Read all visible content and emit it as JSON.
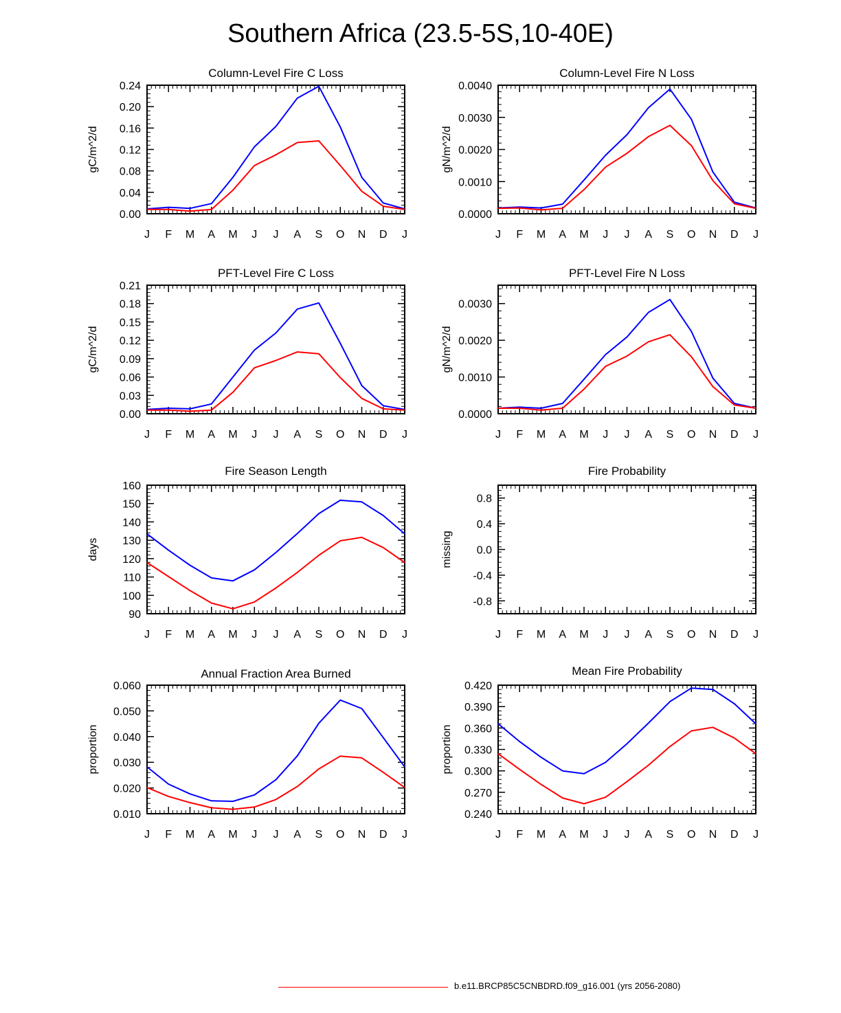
{
  "title": "Southern Africa (23.5-5S,10-40E)",
  "legend": {
    "label": "b.e11.BRCP85C5CNBDRD.f09_g16.001 (yrs 2056-2080)",
    "color": "#ff0000"
  },
  "chart_data": [
    {
      "type": "line",
      "title": "Column-Level Fire C Loss",
      "ylabel": "gC/m^2/d",
      "categories": [
        "J",
        "F",
        "M",
        "A",
        "M",
        "J",
        "J",
        "A",
        "S",
        "O",
        "N",
        "D",
        "J"
      ],
      "ylim": [
        0,
        0.24
      ],
      "yticks": [
        "0.00",
        "0.04",
        "0.08",
        "0.12",
        "0.16",
        "0.20",
        "0.24"
      ],
      "series": [
        {
          "name": "blue",
          "color": "#0000ff",
          "values": [
            0.009,
            0.012,
            0.01,
            0.019,
            0.068,
            0.125,
            0.163,
            0.216,
            0.238,
            0.162,
            0.068,
            0.02,
            0.009
          ]
        },
        {
          "name": "b.e11.BRCP85C5CNBDRD.f09_g16.001 (yrs 2056-2080)",
          "color": "#ff0000",
          "values": [
            0.008,
            0.008,
            0.005,
            0.008,
            0.044,
            0.09,
            0.11,
            0.133,
            0.136,
            0.09,
            0.042,
            0.014,
            0.008
          ]
        }
      ]
    },
    {
      "type": "line",
      "title": "Column-Level Fire N Loss",
      "ylabel": "gN/m^2/d",
      "categories": [
        "J",
        "F",
        "M",
        "A",
        "M",
        "J",
        "J",
        "A",
        "S",
        "O",
        "N",
        "D",
        "J"
      ],
      "ylim": [
        0,
        0.004
      ],
      "yticks": [
        "0.0000",
        "0.0010",
        "0.0020",
        "0.0030",
        "0.0040"
      ],
      "series": [
        {
          "name": "blue",
          "color": "#0000ff",
          "values": [
            0.00018,
            0.00021,
            0.00018,
            0.0003,
            0.00105,
            0.00182,
            0.00246,
            0.0033,
            0.00388,
            0.00294,
            0.0013,
            0.00036,
            0.00018
          ]
        },
        {
          "name": "b.e11.BRCP85C5CNBDRD.f09_g16.001 (yrs 2056-2080)",
          "color": "#ff0000",
          "values": [
            0.00017,
            0.00018,
            0.00012,
            0.00017,
            0.00075,
            0.00145,
            0.00188,
            0.0024,
            0.00275,
            0.00212,
            0.00103,
            0.00031,
            0.00017
          ]
        }
      ]
    },
    {
      "type": "line",
      "title": "PFT-Level Fire C Loss",
      "ylabel": "gC/m^2/d",
      "categories": [
        "J",
        "F",
        "M",
        "A",
        "M",
        "J",
        "J",
        "A",
        "S",
        "O",
        "N",
        "D",
        "J"
      ],
      "ylim": [
        0,
        0.21
      ],
      "yticks": [
        "0.00",
        "0.03",
        "0.06",
        "0.09",
        "0.12",
        "0.15",
        "0.18",
        "0.21"
      ],
      "series": [
        {
          "name": "blue",
          "color": "#0000ff",
          "values": [
            0.007,
            0.009,
            0.008,
            0.016,
            0.06,
            0.104,
            0.132,
            0.171,
            0.181,
            0.115,
            0.046,
            0.013,
            0.007
          ]
        },
        {
          "name": "b.e11.BRCP85C5CNBDRD.f09_g16.001 (yrs 2056-2080)",
          "color": "#ff0000",
          "values": [
            0.006,
            0.006,
            0.004,
            0.006,
            0.035,
            0.075,
            0.087,
            0.101,
            0.098,
            0.059,
            0.025,
            0.008,
            0.006
          ]
        }
      ]
    },
    {
      "type": "line",
      "title": "PFT-Level Fire N Loss",
      "ylabel": "gN/m^2/d",
      "categories": [
        "J",
        "F",
        "M",
        "A",
        "M",
        "J",
        "J",
        "A",
        "S",
        "O",
        "N",
        "D",
        "J"
      ],
      "ylim": [
        0,
        0.0035
      ],
      "yticks": [
        "0.0000",
        "0.0010",
        "0.0020",
        "0.0030"
      ],
      "series": [
        {
          "name": "blue",
          "color": "#0000ff",
          "values": [
            0.00015,
            0.00018,
            0.00015,
            0.00028,
            0.00094,
            0.00161,
            0.00209,
            0.00276,
            0.00311,
            0.00224,
            0.00097,
            0.00028,
            0.00015
          ]
        },
        {
          "name": "b.e11.BRCP85C5CNBDRD.f09_g16.001 (yrs 2056-2080)",
          "color": "#ff0000",
          "values": [
            0.00015,
            0.00015,
            0.0001,
            0.00015,
            0.00067,
            0.00129,
            0.00157,
            0.00196,
            0.00215,
            0.00155,
            0.00074,
            0.00024,
            0.00015
          ]
        }
      ]
    },
    {
      "type": "line",
      "title": "Fire Season Length",
      "ylabel": "days",
      "categories": [
        "J",
        "F",
        "M",
        "A",
        "M",
        "J",
        "J",
        "A",
        "S",
        "O",
        "N",
        "D",
        "J"
      ],
      "ylim": [
        90,
        160
      ],
      "yticks": [
        "90",
        "100",
        "110",
        "120",
        "130",
        "140",
        "150",
        "160"
      ],
      "series": [
        {
          "name": "blue",
          "color": "#0000ff",
          "values": [
            133.5,
            124.6,
            116.4,
            109.5,
            107.9,
            113.9,
            123.3,
            133.7,
            144.5,
            151.8,
            150.9,
            143.5,
            133.5
          ]
        },
        {
          "name": "b.e11.BRCP85C5CNBDRD.f09_g16.001 (yrs 2056-2080)",
          "color": "#ff0000",
          "values": [
            117.9,
            110.2,
            102.6,
            95.8,
            92.7,
            96.4,
            104.0,
            112.5,
            121.8,
            129.7,
            131.6,
            126.0,
            117.9
          ]
        }
      ]
    },
    {
      "type": "line",
      "title": "Fire Probability",
      "ylabel": "missing",
      "categories": [
        "J",
        "F",
        "M",
        "A",
        "M",
        "J",
        "J",
        "A",
        "S",
        "O",
        "N",
        "D",
        "J"
      ],
      "ylim": [
        -1.0,
        1.0
      ],
      "yticks": [
        "-0.8",
        "-0.4",
        "0.0",
        "0.4",
        "0.8"
      ],
      "series": []
    },
    {
      "type": "line",
      "title": "Annual Fraction Area Burned",
      "ylabel": "proportion",
      "categories": [
        "J",
        "F",
        "M",
        "A",
        "M",
        "J",
        "J",
        "A",
        "S",
        "O",
        "N",
        "D",
        "J"
      ],
      "ylim": [
        0.01,
        0.06
      ],
      "yticks": [
        "0.010",
        "0.020",
        "0.030",
        "0.040",
        "0.050",
        "0.060"
      ],
      "series": [
        {
          "name": "blue",
          "color": "#0000ff",
          "values": [
            0.0282,
            0.0215,
            0.0177,
            0.015,
            0.0148,
            0.0173,
            0.0232,
            0.0325,
            0.0452,
            0.0542,
            0.0509,
            0.0396,
            0.0282
          ]
        },
        {
          "name": "b.e11.BRCP85C5CNBDRD.f09_g16.001 (yrs 2056-2080)",
          "color": "#ff0000",
          "values": [
            0.0202,
            0.0167,
            0.0143,
            0.0123,
            0.0117,
            0.0126,
            0.0155,
            0.0206,
            0.0274,
            0.0324,
            0.0317,
            0.0261,
            0.0202
          ]
        }
      ]
    },
    {
      "type": "line",
      "title": "Mean Fire Probability",
      "ylabel": "proportion",
      "categories": [
        "J",
        "F",
        "M",
        "A",
        "M",
        "J",
        "J",
        "A",
        "S",
        "O",
        "N",
        "D",
        "J"
      ],
      "ylim": [
        0.24,
        0.42
      ],
      "yticks": [
        "0.240",
        "0.270",
        "0.300",
        "0.330",
        "0.360",
        "0.390",
        "0.420"
      ],
      "series": [
        {
          "name": "blue",
          "color": "#0000ff",
          "values": [
            0.366,
            0.341,
            0.319,
            0.3,
            0.296,
            0.312,
            0.338,
            0.367,
            0.397,
            0.416,
            0.414,
            0.394,
            0.366
          ]
        },
        {
          "name": "b.e11.BRCP85C5CNBDRD.f09_g16.001 (yrs 2056-2080)",
          "color": "#ff0000",
          "values": [
            0.324,
            0.302,
            0.281,
            0.262,
            0.254,
            0.263,
            0.285,
            0.308,
            0.334,
            0.356,
            0.361,
            0.346,
            0.324
          ]
        }
      ]
    }
  ]
}
